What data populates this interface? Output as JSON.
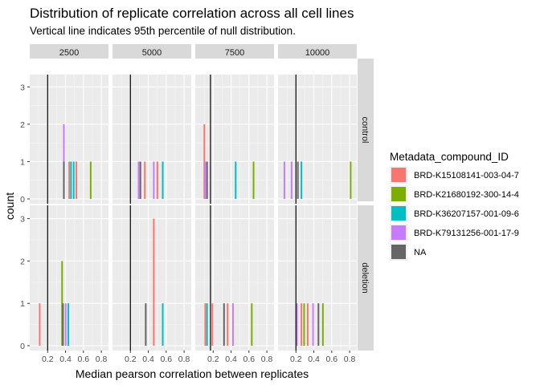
{
  "chart_data": {
    "type": "bar",
    "title": "Distribution of replicate correlation across all cell lines",
    "subtitle": "Vertical line indicates 95th percentile of null distribution.",
    "xlabel": "Median pearson correlation between replicates",
    "ylabel": "count",
    "xlim": [
      0.0,
      0.88
    ],
    "ylim": [
      0,
      3.2
    ],
    "x_ticks": [
      0.2,
      0.4,
      0.6,
      0.8
    ],
    "x_tick_labels": [
      "0.2",
      "0.4",
      "0.6",
      "0.8"
    ],
    "y_ticks": [
      0,
      1,
      2,
      3
    ],
    "y_tick_labels": [
      "0",
      "1",
      "2",
      "3"
    ],
    "grid": true,
    "bin_width": 0.015,
    "col_facets": [
      "2500",
      "5000",
      "7500",
      "10000"
    ],
    "row_facets": [
      "control",
      "deletion"
    ],
    "legend": {
      "title": "Metadata_compound_ID",
      "position": "right",
      "items": [
        {
          "label": "BRD-K15108141-003-04-7",
          "color": "#F8766D"
        },
        {
          "label": "BRD-K21680192-300-14-4",
          "color": "#7CAE00"
        },
        {
          "label": "BRD-K36207157-001-09-6",
          "color": "#00BFC4"
        },
        {
          "label": "BRD-K79131256-001-17-9",
          "color": "#C77CFF"
        },
        {
          "label": "NA",
          "color": "#666666"
        }
      ]
    },
    "panels": [
      {
        "col": "2500",
        "row": "control",
        "vline": 0.2,
        "bars": [
          {
            "x": 0.38,
            "series": "BRD-K79131256-001-17-9",
            "count": 2
          },
          {
            "x": 0.38,
            "series": "NA",
            "count": 1
          },
          {
            "x": 0.44,
            "series": "BRD-K15108141-003-04-7",
            "count": 1
          },
          {
            "x": 0.46,
            "series": "BRD-K36207157-001-09-6",
            "count": 1
          },
          {
            "x": 0.49,
            "series": "BRD-K36207157-001-09-6",
            "count": 1
          },
          {
            "x": 0.52,
            "series": "BRD-K15108141-003-04-7",
            "count": 1
          },
          {
            "x": 0.68,
            "series": "BRD-K21680192-300-14-4",
            "count": 1
          }
        ]
      },
      {
        "col": "5000",
        "row": "control",
        "vline": 0.2,
        "bars": [
          {
            "x": 0.29,
            "series": "BRD-K79131256-001-17-9",
            "count": 1
          },
          {
            "x": 0.31,
            "series": "NA",
            "count": 1
          },
          {
            "x": 0.36,
            "series": "BRD-K15108141-003-04-7",
            "count": 1
          },
          {
            "x": 0.46,
            "series": "BRD-K79131256-001-17-9",
            "count": 1
          },
          {
            "x": 0.5,
            "series": "BRD-K15108141-003-04-7",
            "count": 1
          },
          {
            "x": 0.56,
            "series": "BRD-K36207157-001-09-6",
            "count": 1
          }
        ]
      },
      {
        "col": "7500",
        "row": "control",
        "vline": 0.17,
        "bars": [
          {
            "x": 0.1,
            "series": "BRD-K15108141-003-04-7",
            "count": 2
          },
          {
            "x": 0.11,
            "series": "BRD-K79131256-001-17-9",
            "count": 1
          },
          {
            "x": 0.13,
            "series": "NA",
            "count": 1
          },
          {
            "x": 0.45,
            "series": "BRD-K36207157-001-09-6",
            "count": 1
          },
          {
            "x": 0.65,
            "series": "BRD-K21680192-300-14-4",
            "count": 1
          }
        ]
      },
      {
        "col": "10000",
        "row": "control",
        "vline": 0.2,
        "bars": [
          {
            "x": 0.07,
            "series": "BRD-K79131256-001-17-9",
            "count": 1
          },
          {
            "x": 0.15,
            "series": "BRD-K79131256-001-17-9",
            "count": 1
          },
          {
            "x": 0.22,
            "series": "NA",
            "count": 1
          },
          {
            "x": 0.26,
            "series": "BRD-K36207157-001-09-6",
            "count": 1
          },
          {
            "x": 0.81,
            "series": "BRD-K21680192-300-14-4",
            "count": 1
          }
        ]
      },
      {
        "col": "2500",
        "row": "deletion",
        "vline": 0.2,
        "bars": [
          {
            "x": 0.11,
            "series": "BRD-K15108141-003-04-7",
            "count": 1
          },
          {
            "x": 0.36,
            "series": "BRD-K21680192-300-14-4",
            "count": 2
          },
          {
            "x": 0.37,
            "series": "NA",
            "count": 1
          },
          {
            "x": 0.4,
            "series": "BRD-K79131256-001-17-9",
            "count": 1
          },
          {
            "x": 0.43,
            "series": "BRD-K36207157-001-09-6",
            "count": 1
          }
        ]
      },
      {
        "col": "5000",
        "row": "deletion",
        "vline": 0.2,
        "bars": [
          {
            "x": 0.37,
            "series": "NA",
            "count": 1
          },
          {
            "x": 0.46,
            "series": "BRD-K15108141-003-04-7",
            "count": 3
          },
          {
            "x": 0.56,
            "series": "BRD-K36207157-001-09-6",
            "count": 1
          }
        ]
      },
      {
        "col": "7500",
        "row": "deletion",
        "vline": 0.17,
        "bars": [
          {
            "x": 0.11,
            "series": "BRD-K15108141-003-04-7",
            "count": 1
          },
          {
            "x": 0.13,
            "series": "BRD-K36207157-001-09-6",
            "count": 1
          },
          {
            "x": 0.19,
            "series": "BRD-K15108141-003-04-7",
            "count": 1
          },
          {
            "x": 0.32,
            "series": "NA",
            "count": 1
          },
          {
            "x": 0.36,
            "series": "BRD-K15108141-003-04-7",
            "count": 1
          },
          {
            "x": 0.42,
            "series": "BRD-K79131256-001-17-9",
            "count": 1
          },
          {
            "x": 0.63,
            "series": "BRD-K21680192-300-14-4",
            "count": 1
          }
        ]
      },
      {
        "col": "10000",
        "row": "deletion",
        "vline": 0.2,
        "bars": [
          {
            "x": 0.21,
            "series": "BRD-K79131256-001-17-9",
            "count": 1
          },
          {
            "x": 0.26,
            "series": "BRD-K15108141-003-04-7",
            "count": 1
          },
          {
            "x": 0.29,
            "series": "BRD-K21680192-300-14-4",
            "count": 1
          },
          {
            "x": 0.33,
            "series": "BRD-K15108141-003-04-7",
            "count": 1
          },
          {
            "x": 0.39,
            "series": "BRD-K79131256-001-17-9",
            "count": 1
          },
          {
            "x": 0.45,
            "series": "NA",
            "count": 1
          },
          {
            "x": 0.5,
            "series": "BRD-K21680192-300-14-4",
            "count": 1
          }
        ]
      }
    ]
  }
}
